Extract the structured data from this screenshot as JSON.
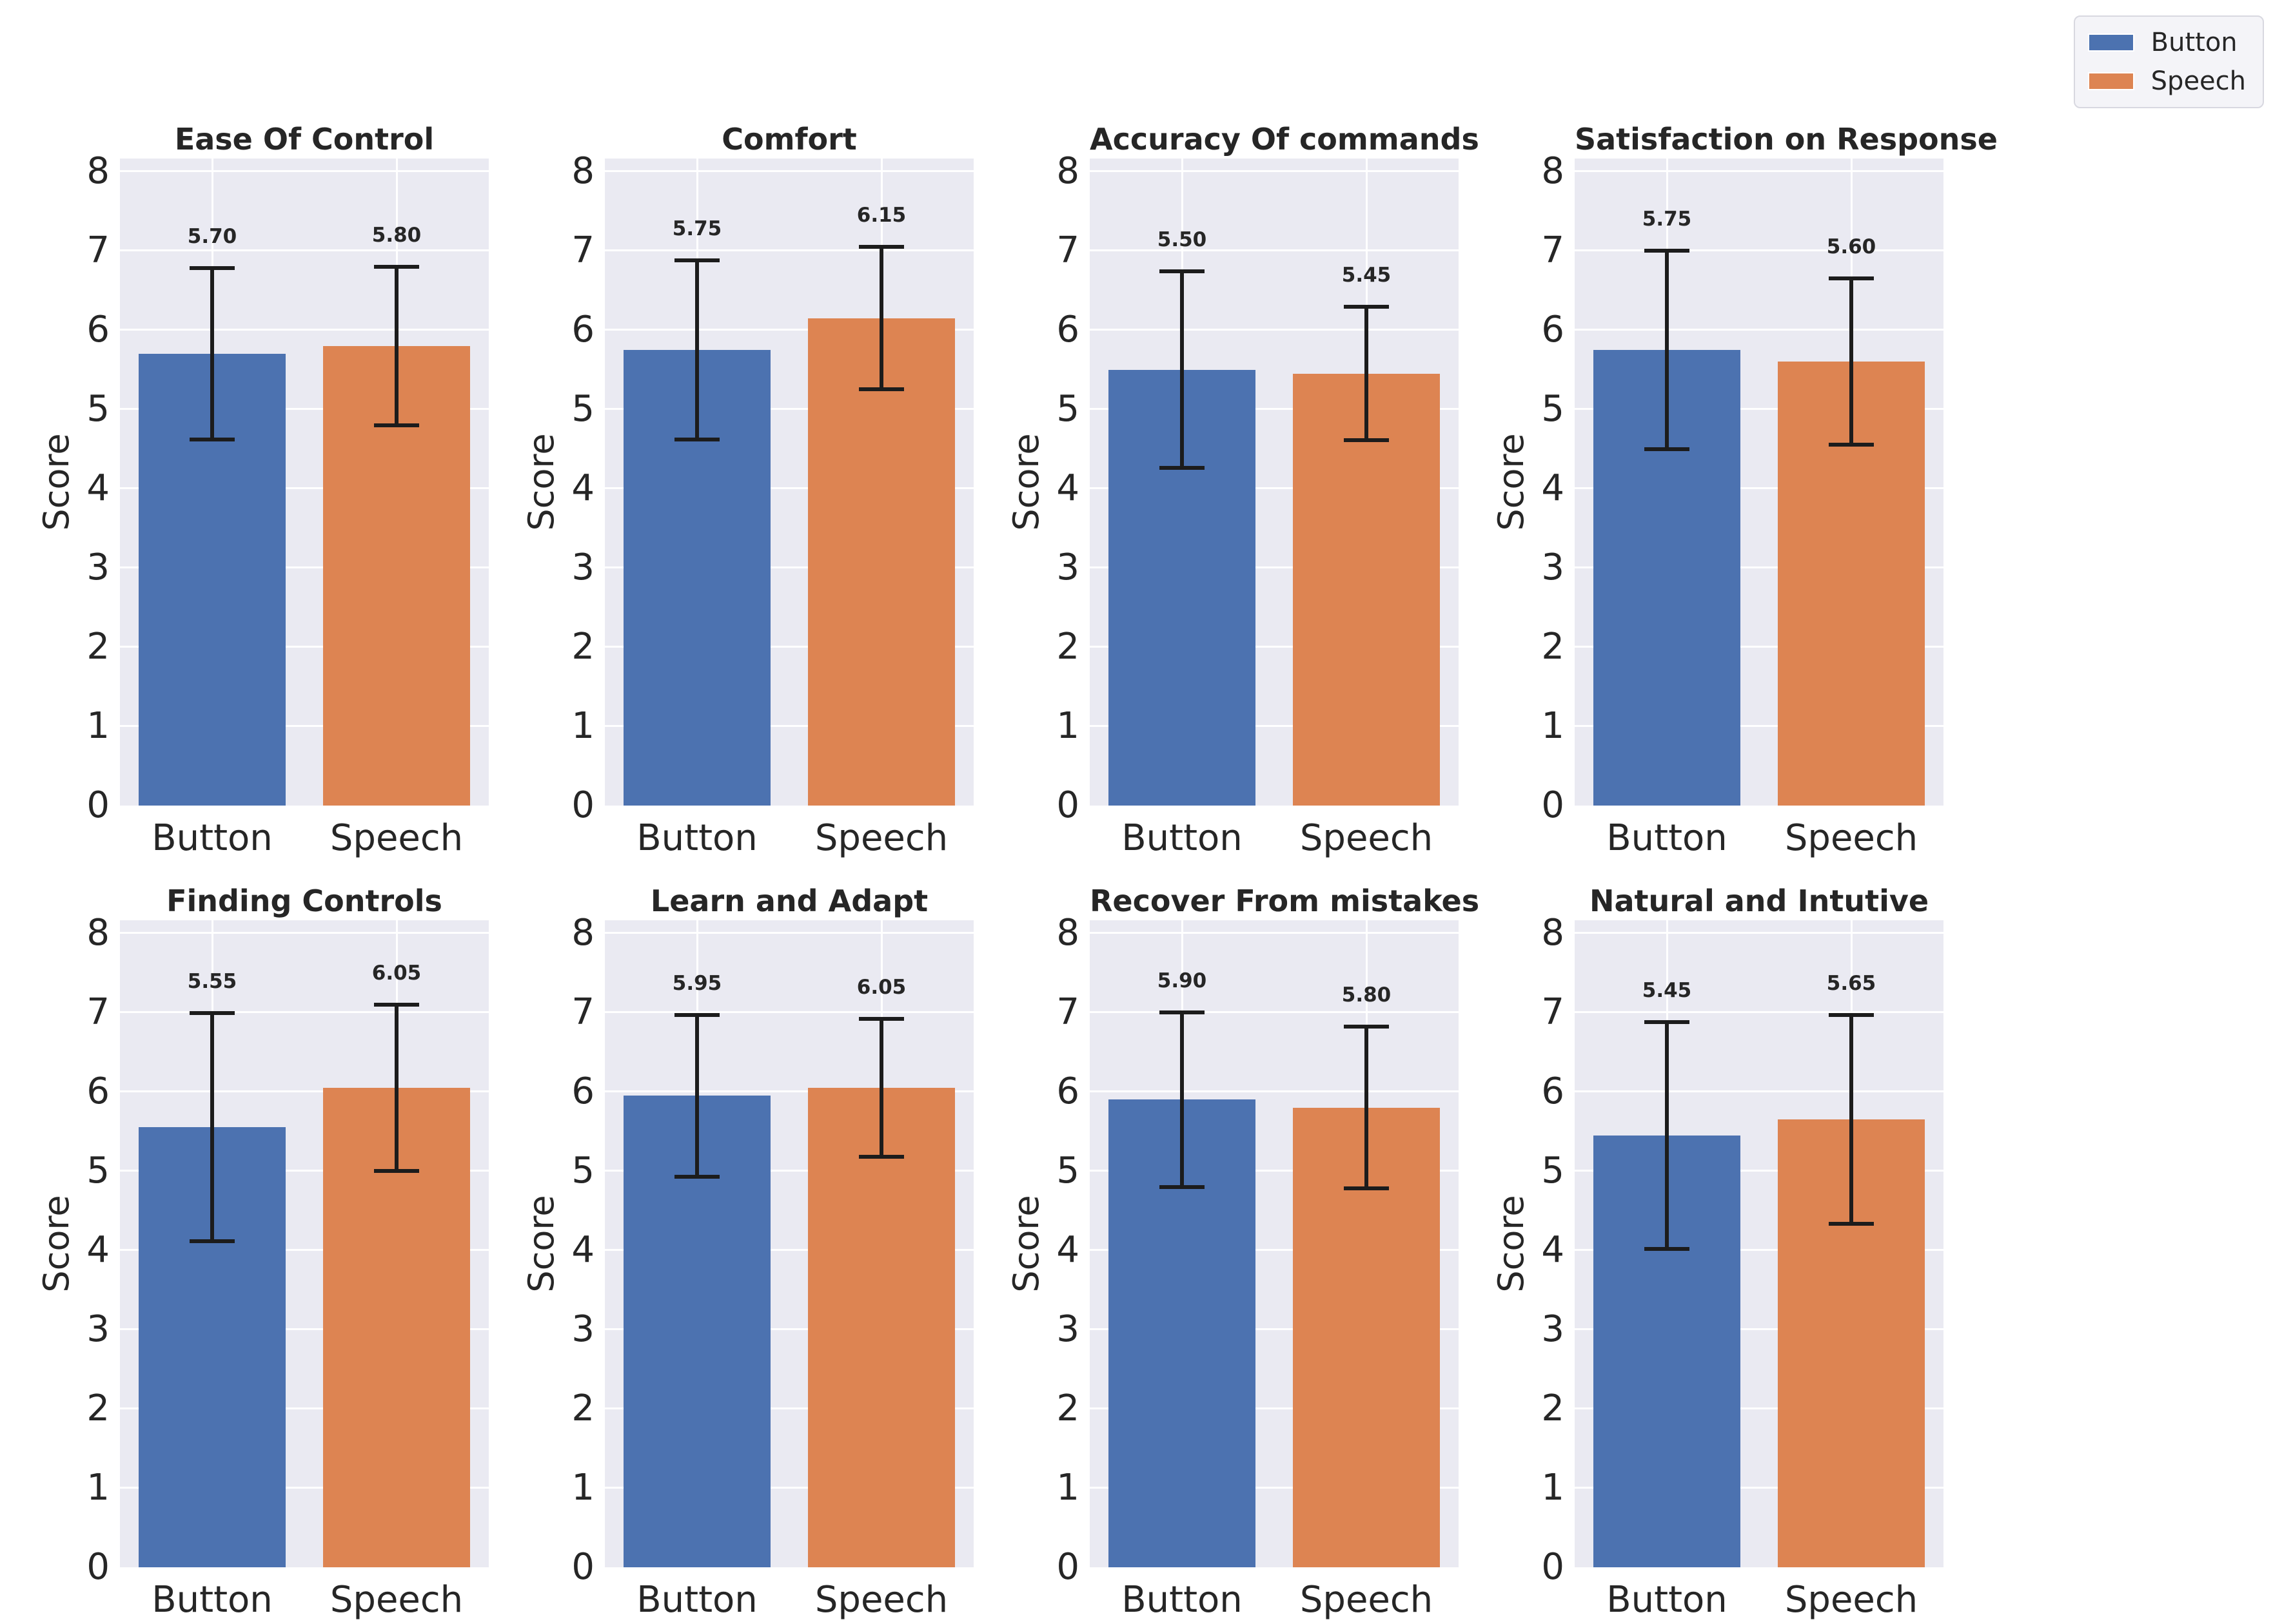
{
  "figure": {
    "background": "#ffffff",
    "plot_background": "#eaeaf2",
    "grid_color": "#ffffff",
    "text_color": "#262626",
    "error_bar_color": "#1c1c1c"
  },
  "legend": {
    "items": [
      {
        "label": "Button",
        "color": "#4C72B0"
      },
      {
        "label": "Speech",
        "color": "#DD8452"
      }
    ]
  },
  "axis": {
    "ylabel": "Score",
    "ymin": 0,
    "ymax": 8,
    "ytick_labels": [
      "0",
      "1",
      "2",
      "3",
      "4",
      "5",
      "6",
      "7",
      "8"
    ],
    "categories": [
      "Button",
      "Speech"
    ]
  },
  "chart_data": [
    {
      "type": "bar",
      "title": "Ease Of Control",
      "xlabel": "",
      "ylabel": "Score",
      "categories": [
        "Button",
        "Speech"
      ],
      "values": [
        5.7,
        5.8
      ],
      "value_labels": [
        "5.70",
        "5.80"
      ],
      "errors": [
        1.08,
        1.0
      ],
      "bar_colors": [
        "#4C72B0",
        "#DD8452"
      ],
      "ylim": [
        0,
        8
      ],
      "grid": true
    },
    {
      "type": "bar",
      "title": "Comfort",
      "xlabel": "",
      "ylabel": "Score",
      "categories": [
        "Button",
        "Speech"
      ],
      "values": [
        5.75,
        6.15
      ],
      "value_labels": [
        "5.75",
        "6.15"
      ],
      "errors": [
        1.13,
        0.9
      ],
      "bar_colors": [
        "#4C72B0",
        "#DD8452"
      ],
      "ylim": [
        0,
        8
      ],
      "grid": true
    },
    {
      "type": "bar",
      "title": "Accuracy Of commands",
      "xlabel": "",
      "ylabel": "Score",
      "categories": [
        "Button",
        "Speech"
      ],
      "values": [
        5.5,
        5.45
      ],
      "value_labels": [
        "5.50",
        "5.45"
      ],
      "errors": [
        1.24,
        0.84
      ],
      "bar_colors": [
        "#4C72B0",
        "#DD8452"
      ],
      "ylim": [
        0,
        8
      ],
      "grid": true
    },
    {
      "type": "bar",
      "title": "Satisfaction on Response",
      "xlabel": "",
      "ylabel": "Score",
      "categories": [
        "Button",
        "Speech"
      ],
      "values": [
        5.75,
        5.6
      ],
      "value_labels": [
        "5.75",
        "5.60"
      ],
      "errors": [
        1.25,
        1.05
      ],
      "bar_colors": [
        "#4C72B0",
        "#DD8452"
      ],
      "ylim": [
        0,
        8
      ],
      "grid": true
    },
    {
      "type": "bar",
      "title": "Finding Controls",
      "xlabel": "",
      "ylabel": "Score",
      "categories": [
        "Button",
        "Speech"
      ],
      "values": [
        5.55,
        6.05
      ],
      "value_labels": [
        "5.55",
        "6.05"
      ],
      "errors": [
        1.44,
        1.05
      ],
      "bar_colors": [
        "#4C72B0",
        "#DD8452"
      ],
      "ylim": [
        0,
        8
      ],
      "grid": true
    },
    {
      "type": "bar",
      "title": "Learn and Adapt",
      "xlabel": "",
      "ylabel": "Score",
      "categories": [
        "Button",
        "Speech"
      ],
      "values": [
        5.95,
        6.05
      ],
      "value_labels": [
        "5.95",
        "6.05"
      ],
      "errors": [
        1.02,
        0.87
      ],
      "bar_colors": [
        "#4C72B0",
        "#DD8452"
      ],
      "ylim": [
        0,
        8
      ],
      "grid": true
    },
    {
      "type": "bar",
      "title": "Recover From mistakes",
      "xlabel": "",
      "ylabel": "Score",
      "categories": [
        "Button",
        "Speech"
      ],
      "values": [
        5.9,
        5.8
      ],
      "value_labels": [
        "5.90",
        "5.80"
      ],
      "errors": [
        1.1,
        1.02
      ],
      "bar_colors": [
        "#4C72B0",
        "#DD8452"
      ],
      "ylim": [
        0,
        8
      ],
      "grid": true
    },
    {
      "type": "bar",
      "title": "Natural and Intutive",
      "xlabel": "",
      "ylabel": "Score",
      "categories": [
        "Button",
        "Speech"
      ],
      "values": [
        5.45,
        5.65
      ],
      "value_labels": [
        "5.45",
        "5.65"
      ],
      "errors": [
        1.43,
        1.32
      ],
      "bar_colors": [
        "#4C72B0",
        "#DD8452"
      ],
      "ylim": [
        0,
        8
      ],
      "grid": true
    }
  ]
}
